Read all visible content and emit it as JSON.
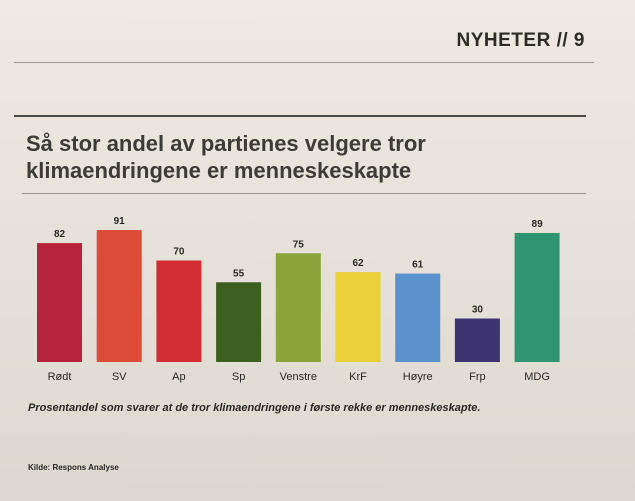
{
  "page": {
    "section_label": "NYHETER // 9",
    "caption": "Prosentandel som svarer at de tror klimaendringene i første rekke er menneskeskapte.",
    "source": "Kilde: Respons Analyse"
  },
  "chart_data": {
    "type": "bar",
    "title": "Så stor andel av partienes velgere tror klimaendringene er menneskeskapte",
    "xlabel": "",
    "ylabel": "",
    "ylim": [
      0,
      100
    ],
    "categories": [
      "Rødt",
      "SV",
      "Ap",
      "Sp",
      "Venstre",
      "KrF",
      "Høyre",
      "Frp",
      "MDG"
    ],
    "values": [
      82,
      91,
      70,
      55,
      75,
      62,
      61,
      30,
      89
    ],
    "colors": [
      "#b8233c",
      "#dc4a38",
      "#d22c34",
      "#3d5f1f",
      "#8aa63a",
      "#e9cf3a",
      "#5b91cc",
      "#3e3470",
      "#2f9472"
    ]
  }
}
